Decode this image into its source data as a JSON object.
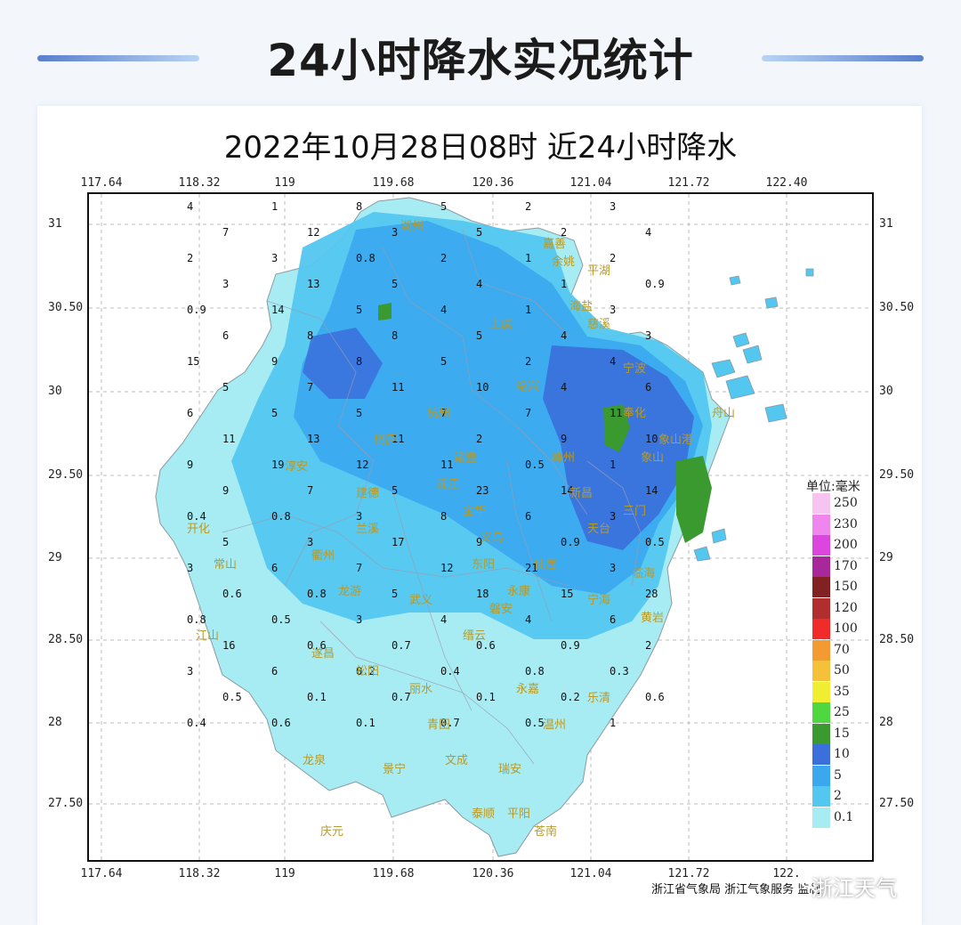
{
  "header": {
    "title": "24小时降水实况统计"
  },
  "map": {
    "title": "2022年10月28日08时  近24小时降水",
    "lon_ticks": [
      "117.64",
      "118.32",
      "119",
      "119.68",
      "120.36",
      "121.04",
      "121.72",
      "122.40"
    ],
    "lon_ticks_bottom": [
      "117.64",
      "118.32",
      "119",
      "119.68",
      "120.36",
      "121.04",
      "121.72",
      "122."
    ],
    "lat_ticks": [
      "31",
      "30.50",
      "30",
      "29.50",
      "29",
      "28.50",
      "28",
      "27.50"
    ],
    "legend": {
      "title": "单位:毫米",
      "items": [
        {
          "label": "250",
          "color": "#f7c3f0"
        },
        {
          "label": "230",
          "color": "#ee86ee"
        },
        {
          "label": "200",
          "color": "#dd46de"
        },
        {
          "label": "170",
          "color": "#a8289c"
        },
        {
          "label": "150",
          "color": "#822121"
        },
        {
          "label": "120",
          "color": "#b22e2e"
        },
        {
          "label": "100",
          "color": "#f12a2a"
        },
        {
          "label": "70",
          "color": "#f39a32"
        },
        {
          "label": "50",
          "color": "#f6c13a"
        },
        {
          "label": "35",
          "color": "#f0ee32"
        },
        {
          "label": "25",
          "color": "#4ed73f"
        },
        {
          "label": "15",
          "color": "#3b9a2f"
        },
        {
          "label": "10",
          "color": "#3a6fdc"
        },
        {
          "label": "5",
          "color": "#3aa7ee"
        },
        {
          "label": "2",
          "color": "#53c7ef"
        },
        {
          "label": "0.1",
          "color": "#a8ecf3"
        }
      ]
    },
    "cities": [
      "嘉善",
      "平湖",
      "湖州",
      "海盐",
      "杭州",
      "宁波",
      "象山",
      "绍兴",
      "诸暨",
      "兰溪",
      "金华",
      "开化",
      "常山",
      "衢州",
      "龙游",
      "江山",
      "遂昌",
      "松阳",
      "丽水",
      "青田",
      "永嘉",
      "温州",
      "乐清",
      "文成",
      "瑞安",
      "平阳",
      "苍南",
      "泰顺",
      "庆元",
      "龙泉",
      "景宁",
      "缙云",
      "天台",
      "仙居",
      "临海",
      "黄岩",
      "三门",
      "淳安",
      "建德",
      "桐庐",
      "嵊州",
      "新昌",
      "东阳",
      "磐安",
      "永康",
      "武义",
      "浦江",
      "义乌",
      "舟山",
      "宁海",
      "奉化",
      "余姚",
      "慈溪",
      "上虞",
      "象山港"
    ],
    "values": [
      "4",
      "1",
      "8",
      "5",
      "2",
      "3",
      "7",
      "12",
      "3",
      "5",
      "2",
      "4",
      "2",
      "3",
      "0.8",
      "2",
      "1",
      "2",
      "3",
      "13",
      "5",
      "4",
      "1",
      "0.9",
      "0.9",
      "14",
      "5",
      "4",
      "1",
      "3",
      "6",
      "8",
      "8",
      "5",
      "4",
      "3",
      "15",
      "9",
      "8",
      "5",
      "2",
      "4",
      "5",
      "7",
      "11",
      "10",
      "4",
      "6",
      "6",
      "5",
      "5",
      "7",
      "7",
      "11",
      "11",
      "13",
      "11",
      "2",
      "9",
      "10",
      "9",
      "19",
      "12",
      "11",
      "0.5",
      "1",
      "9",
      "7",
      "5",
      "23",
      "14",
      "14",
      "0.4",
      "0.8",
      "3",
      "8",
      "6",
      "3",
      "5",
      "3",
      "17",
      "9",
      "0.9",
      "0.5",
      "3",
      "6",
      "7",
      "12",
      "21",
      "3",
      "0.6",
      "0.8",
      "5",
      "18",
      "15",
      "28",
      "0.8",
      "0.5",
      "3",
      "4",
      "4",
      "6",
      "16",
      "0.6",
      "0.7",
      "0.6",
      "0.9",
      "2",
      "3",
      "6",
      "0.2",
      "0.4",
      "0.8",
      "0.3",
      "0.5",
      "0.1",
      "0.7",
      "0.1",
      "0.2",
      "0.6",
      "0.4",
      "0.6",
      "0.1",
      "0.7",
      "0.5",
      "1"
    ]
  },
  "credit": "浙江省气象局  浙江气象服务  监制",
  "watermark": "浙江天气"
}
